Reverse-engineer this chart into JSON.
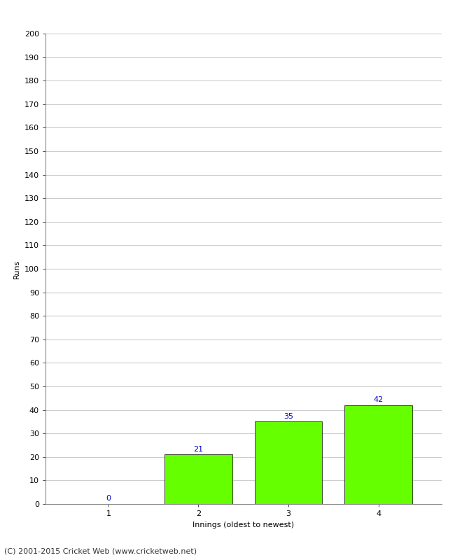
{
  "categories": [
    1,
    2,
    3,
    4
  ],
  "values": [
    0,
    21,
    35,
    42
  ],
  "bar_color": "#66ff00",
  "bar_edge_color": "#000000",
  "value_label_color": "#0000cc",
  "value_label_fontsize": 8,
  "ylabel": "Runs",
  "xlabel": "Innings (oldest to newest)",
  "ylim": [
    0,
    200
  ],
  "yticks": [
    0,
    10,
    20,
    30,
    40,
    50,
    60,
    70,
    80,
    90,
    100,
    110,
    120,
    130,
    140,
    150,
    160,
    170,
    180,
    190,
    200
  ],
  "grid_color": "#cccccc",
  "background_color": "#ffffff",
  "footer": "(C) 2001-2015 Cricket Web (www.cricketweb.net)",
  "footer_fontsize": 8,
  "bar_width": 0.75
}
